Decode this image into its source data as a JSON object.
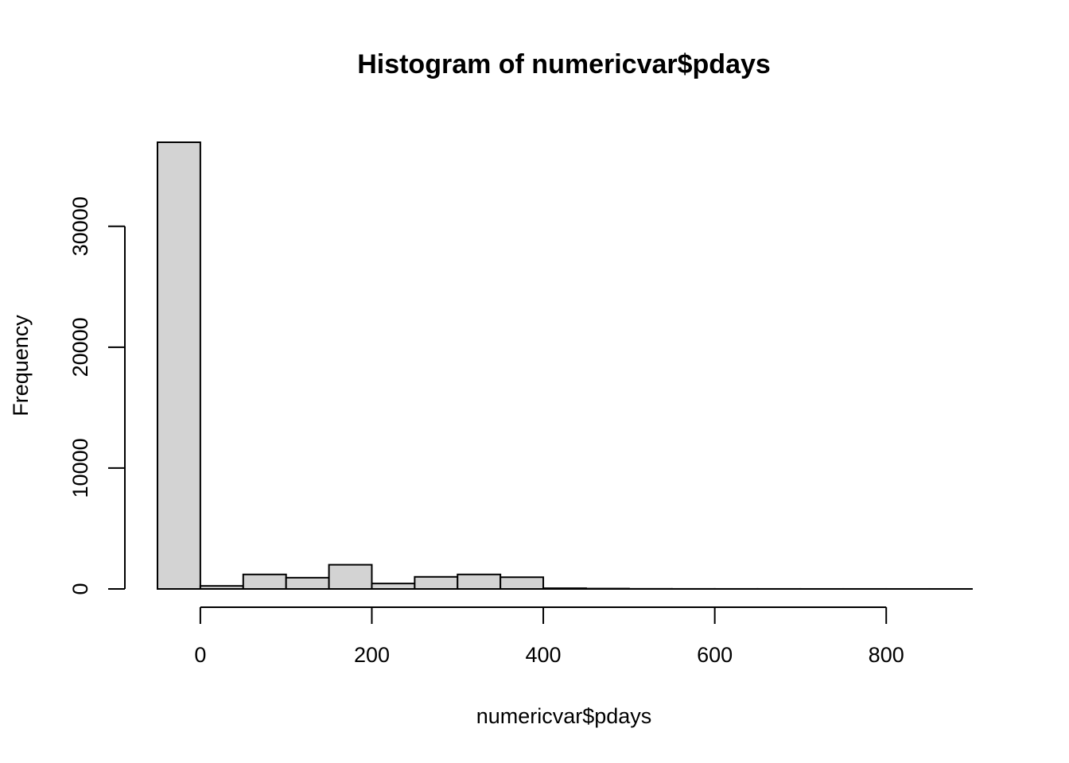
{
  "chart_data": {
    "type": "bar",
    "title": "Histogram of numericvar$pdays",
    "xlabel": "numericvar$pdays",
    "ylabel": "Frequency",
    "xlim": [
      -50,
      900
    ],
    "ylim": [
      0,
      36954
    ],
    "x_ticks": [
      0,
      200,
      400,
      600,
      800
    ],
    "y_ticks": [
      0,
      10000,
      20000,
      30000
    ],
    "x_tick_labels": [
      "0",
      "200",
      "400",
      "600",
      "800"
    ],
    "y_tick_labels": [
      "0",
      "10000",
      "20000",
      "30000"
    ],
    "bin_width": 50,
    "bins": [
      {
        "start": -50,
        "end": 0,
        "count": 36954
      },
      {
        "start": 0,
        "end": 50,
        "count": 250
      },
      {
        "start": 50,
        "end": 100,
        "count": 1200
      },
      {
        "start": 100,
        "end": 150,
        "count": 930
      },
      {
        "start": 150,
        "end": 200,
        "count": 2000
      },
      {
        "start": 200,
        "end": 250,
        "count": 450
      },
      {
        "start": 250,
        "end": 300,
        "count": 1000
      },
      {
        "start": 300,
        "end": 350,
        "count": 1200
      },
      {
        "start": 350,
        "end": 400,
        "count": 970
      },
      {
        "start": 400,
        "end": 450,
        "count": 60
      },
      {
        "start": 450,
        "end": 500,
        "count": 30
      },
      {
        "start": 500,
        "end": 550,
        "count": 10
      },
      {
        "start": 550,
        "end": 600,
        "count": 5
      },
      {
        "start": 600,
        "end": 650,
        "count": 4
      },
      {
        "start": 650,
        "end": 700,
        "count": 3
      },
      {
        "start": 700,
        "end": 750,
        "count": 2
      },
      {
        "start": 750,
        "end": 800,
        "count": 2
      },
      {
        "start": 800,
        "end": 850,
        "count": 1
      },
      {
        "start": 850,
        "end": 900,
        "count": 1
      }
    ],
    "grid": false,
    "bar_fill": "#d3d3d3",
    "bar_stroke": "#000000"
  }
}
